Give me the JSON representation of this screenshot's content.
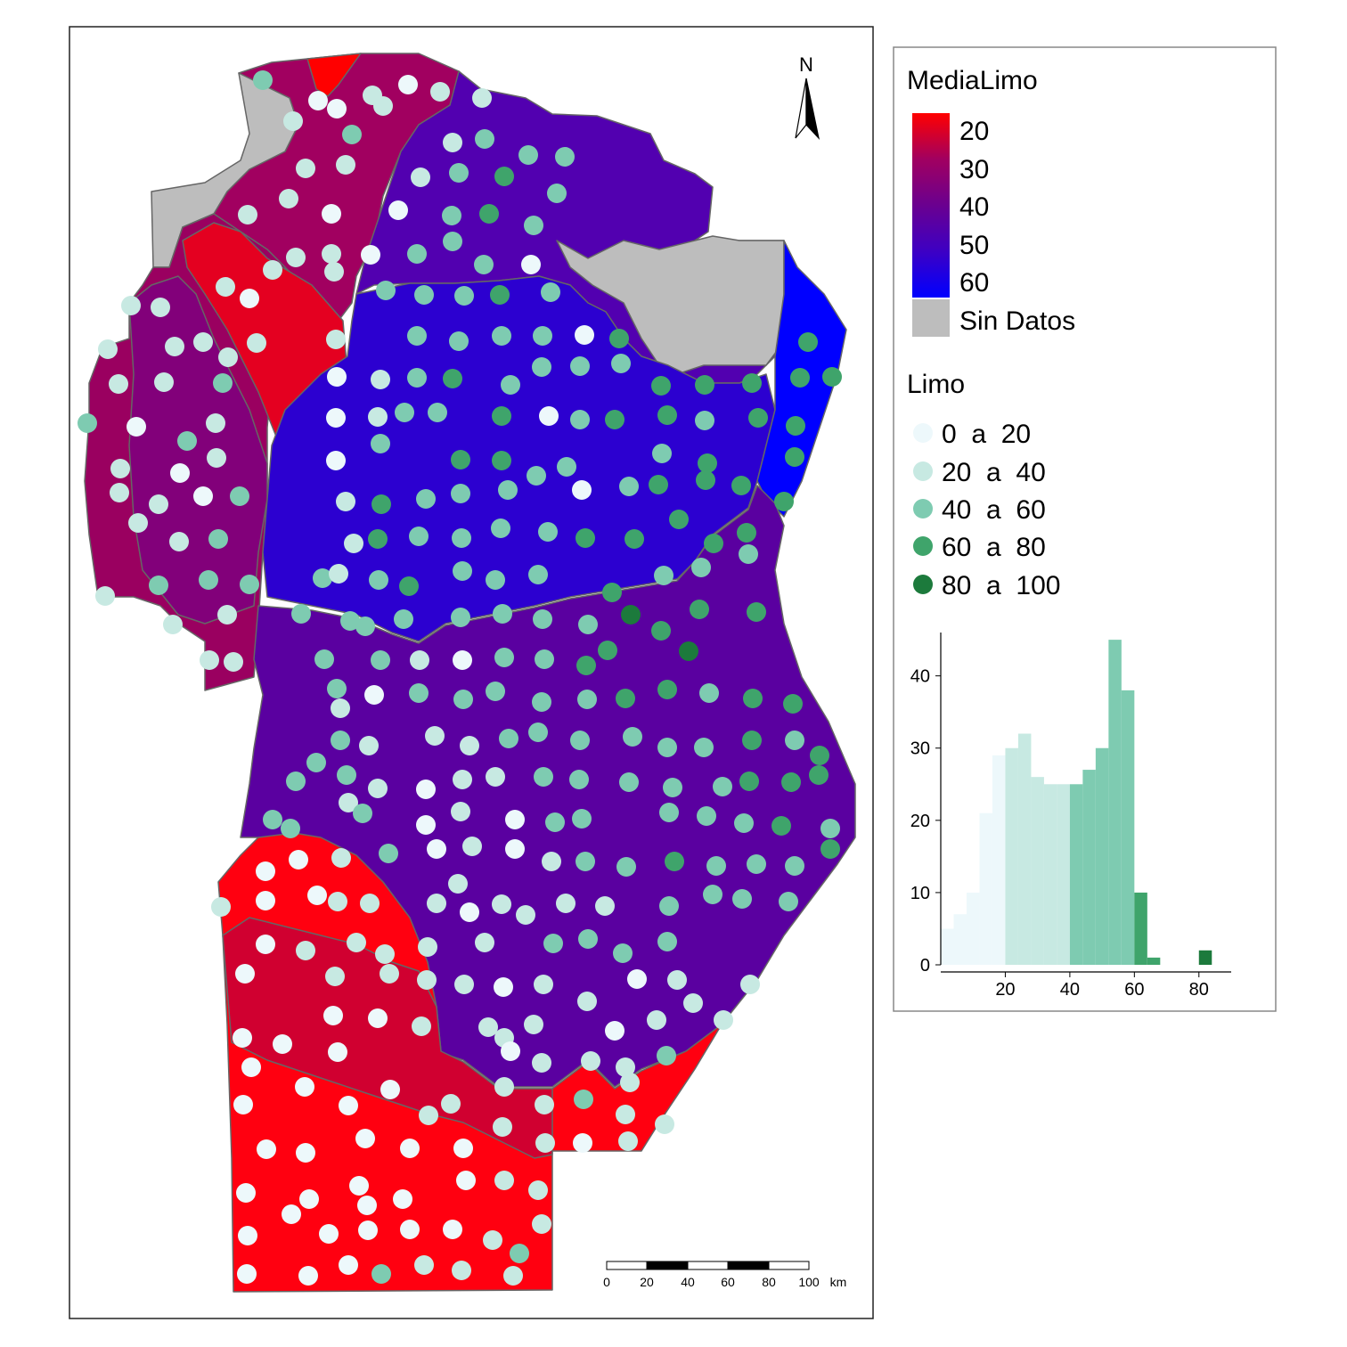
{
  "north_arrow": {
    "label": "N"
  },
  "scale_bar": {
    "ticks": [
      "0",
      "20",
      "40",
      "60",
      "80",
      "100"
    ],
    "unit": "km"
  },
  "legend": {
    "fill_title": "MediaLimo",
    "fill_breaks": [
      "20",
      "30",
      "40",
      "50",
      "60"
    ],
    "fill_colors": [
      "#ff0000",
      "#a10060",
      "#6a0090",
      "#3d00c4",
      "#0000ff"
    ],
    "no_data_label": "Sin Datos",
    "no_data_color": "#bdbdbd",
    "symbol_title": "Limo",
    "symbol_classes": [
      {
        "label": "0  a  20",
        "color": "#edf8fb"
      },
      {
        "label": "20  a  40",
        "color": "#c7e9e2"
      },
      {
        "label": "40  a  60",
        "color": "#7ecbb1"
      },
      {
        "label": "60  a  80",
        "color": "#3fa46b"
      },
      {
        "label": "80  a  100",
        "color": "#1c7a3c"
      }
    ]
  },
  "histogram": {
    "x_ticks": [
      "20",
      "40",
      "60",
      "80"
    ],
    "y_ticks": [
      "0",
      "10",
      "20",
      "30",
      "40"
    ],
    "xlim": [
      0,
      90
    ],
    "ylim": [
      0,
      46
    ],
    "bin_width": 4,
    "bins": [
      {
        "x0": 0,
        "count": 5
      },
      {
        "x0": 4,
        "count": 7
      },
      {
        "x0": 8,
        "count": 10
      },
      {
        "x0": 12,
        "count": 21
      },
      {
        "x0": 16,
        "count": 29
      },
      {
        "x0": 20,
        "count": 30
      },
      {
        "x0": 24,
        "count": 32
      },
      {
        "x0": 28,
        "count": 26
      },
      {
        "x0": 32,
        "count": 25
      },
      {
        "x0": 36,
        "count": 25
      },
      {
        "x0": 40,
        "count": 25
      },
      {
        "x0": 44,
        "count": 27
      },
      {
        "x0": 48,
        "count": 30
      },
      {
        "x0": 52,
        "count": 45
      },
      {
        "x0": 56,
        "count": 38
      },
      {
        "x0": 60,
        "count": 10
      },
      {
        "x0": 64,
        "count": 1
      },
      {
        "x0": 68,
        "count": 0
      },
      {
        "x0": 72,
        "count": 0
      },
      {
        "x0": 76,
        "count": 0
      },
      {
        "x0": 80,
        "count": 2
      }
    ]
  }
}
